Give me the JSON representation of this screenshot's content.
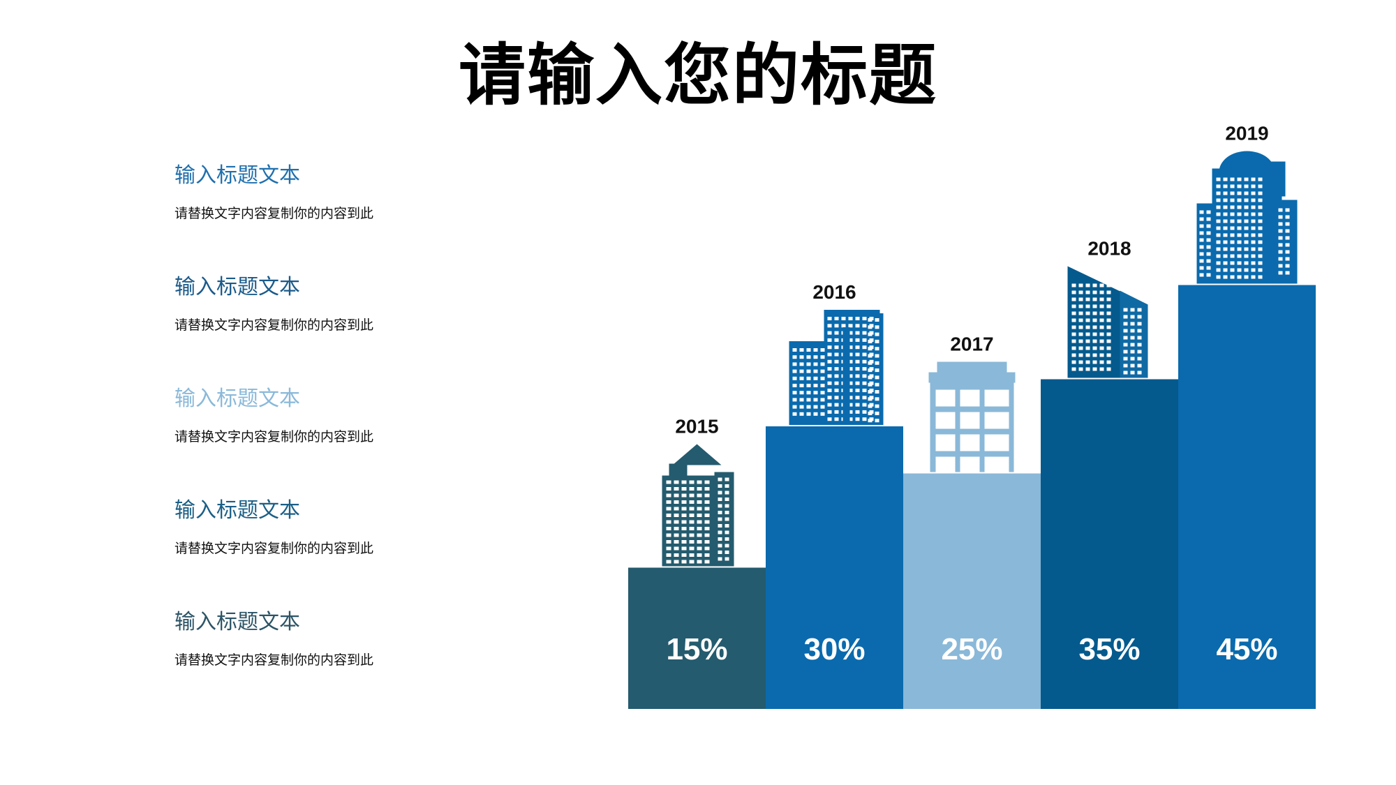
{
  "title": "请输入您的标题",
  "items": [
    {
      "heading": "输入标题文本",
      "desc": "请替换文字内容复制你的内容到此",
      "color": "#1f6fad"
    },
    {
      "heading": "输入标题文本",
      "desc": "请替换文字内容复制你的内容到此",
      "color": "#1a5a8a"
    },
    {
      "heading": "输入标题文本",
      "desc": "请替换文字内容复制你的内容到此",
      "color": "#8ab9d9"
    },
    {
      "heading": "输入标题文本",
      "desc": "请替换文字内容复制你的内容到此",
      "color": "#1a5f86"
    },
    {
      "heading": "输入标题文本",
      "desc": "请替换文字内容复制你的内容到此",
      "color": "#2c5466"
    }
  ],
  "chart_data": {
    "type": "bar",
    "categories": [
      "2015",
      "2016",
      "2017",
      "2018",
      "2019"
    ],
    "values": [
      15,
      30,
      25,
      35,
      45
    ],
    "labels": [
      "15%",
      "30%",
      "25%",
      "35%",
      "45%"
    ],
    "colors": [
      "#245b6e",
      "#0a6aad",
      "#8ab8d8",
      "#045a8d",
      "#0a6aad"
    ],
    "icons": [
      "tower-icon",
      "twin-towers-icon",
      "office-block-icon",
      "slanted-roof-building-icon",
      "dome-building-icon"
    ],
    "title": "",
    "xlabel": "",
    "ylabel": "",
    "ylim": [
      0,
      50
    ]
  }
}
